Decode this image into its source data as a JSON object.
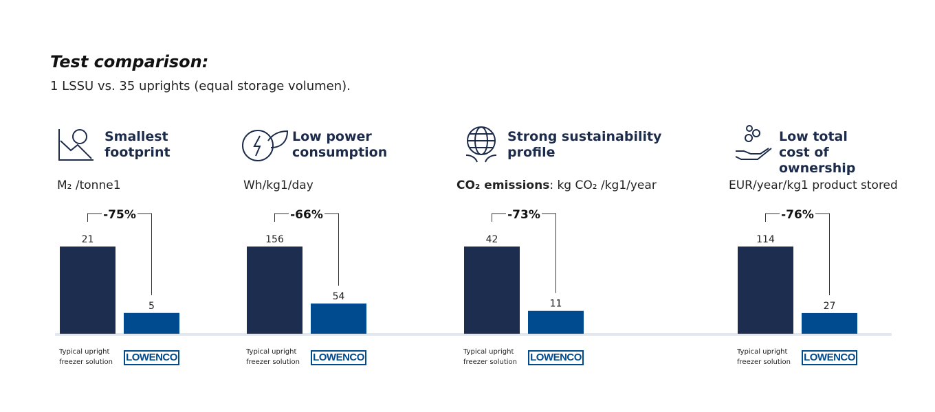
{
  "title": "Test comparison:",
  "subtitle": "1 LSSU vs. 35 uprights (equal storage volumen).",
  "chart_data": [
    {
      "type": "bar",
      "title": "Smallest footprint",
      "unit": "M₂ /tonne1",
      "annotation": "-75%",
      "categories": [
        "Typical upright freezer solution",
        "LOWENCO"
      ],
      "values": [
        21,
        5
      ],
      "colors": [
        "#1c2d4f",
        "#004a8f"
      ]
    },
    {
      "type": "bar",
      "title": "Low power consumption",
      "unit": "Wh/kg1/day",
      "annotation": "-66%",
      "categories": [
        "Typical upright freezer solution",
        "LOWENCO"
      ],
      "values": [
        156,
        54
      ],
      "colors": [
        "#1c2d4f",
        "#004a8f"
      ]
    },
    {
      "type": "bar",
      "title": "Strong sustainability profile",
      "unit_bold": "CO₂ emissions",
      "unit": ": kg CO₂ /kg1/year",
      "annotation": "-73%",
      "categories": [
        "Typical upright freezer solution",
        "LOWENCO"
      ],
      "values": [
        42,
        11
      ],
      "colors": [
        "#1c2d4f",
        "#004a8f"
      ]
    },
    {
      "type": "bar",
      "title": "Low total cost of ownership",
      "unit": "EUR/year/kg1 product stored",
      "annotation": "-76%",
      "categories": [
        "Typical upright freezer solution",
        "LOWENCO"
      ],
      "values": [
        114,
        27
      ],
      "colors": [
        "#1c2d4f",
        "#004a8f"
      ]
    }
  ]
}
